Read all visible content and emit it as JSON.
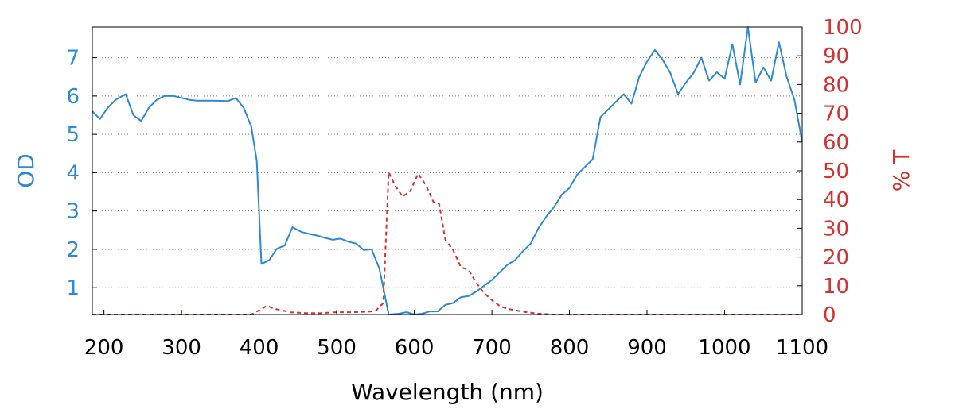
{
  "chart_data": {
    "type": "line",
    "title": "",
    "xlabel": "Wavelength (nm)",
    "ylabel_left": "OD",
    "ylabel_right": "% T",
    "xlim": [
      185,
      1100
    ],
    "ylim_left": [
      0.3,
      7.8
    ],
    "ylim_right": [
      0,
      100
    ],
    "x_ticks": [
      200,
      300,
      400,
      500,
      600,
      700,
      800,
      900,
      1000,
      1100
    ],
    "y_ticks_left": [
      1,
      2,
      3,
      4,
      5,
      6,
      7
    ],
    "y_ticks_right": [
      0,
      10,
      20,
      30,
      40,
      50,
      60,
      70,
      80,
      90,
      100
    ],
    "grid": "horizontal dotted at left-axis ticks",
    "colors": {
      "od": "#2e8ad1",
      "transmission": "#d33333",
      "grid": "#808080",
      "axis": "#000000"
    },
    "series": [
      {
        "axis": "left",
        "style": "solid",
        "color": "#2e8ad1",
        "x": [
          185,
          195,
          205,
          215,
          228,
          238,
          248,
          258,
          268,
          278,
          290,
          300,
          310,
          320,
          340,
          360,
          370,
          380,
          390,
          397,
          403,
          413,
          423,
          433,
          443,
          455,
          465,
          475,
          485,
          495,
          505,
          515,
          525,
          535,
          545,
          555,
          567,
          580,
          590,
          600,
          610,
          620,
          630,
          640,
          650,
          660,
          670,
          680,
          690,
          700,
          710,
          720,
          730,
          740,
          750,
          760,
          770,
          780,
          790,
          800,
          810,
          820,
          830,
          840,
          850,
          860,
          870,
          880,
          890,
          900,
          910,
          920,
          930,
          940,
          950,
          960,
          970,
          980,
          990,
          1000,
          1010,
          1020,
          1030,
          1040,
          1050,
          1060,
          1070,
          1080,
          1090,
          1100
        ],
        "y": [
          5.6,
          5.4,
          5.7,
          5.9,
          6.05,
          5.5,
          5.35,
          5.7,
          5.9,
          6.0,
          6.0,
          5.95,
          5.9,
          5.88,
          5.88,
          5.87,
          5.95,
          5.7,
          5.2,
          4.3,
          1.62,
          1.72,
          2.02,
          2.1,
          2.58,
          2.45,
          2.4,
          2.36,
          2.3,
          2.25,
          2.28,
          2.2,
          2.15,
          1.98,
          2.0,
          1.5,
          0.3,
          0.32,
          0.36,
          0.3,
          0.32,
          0.38,
          0.38,
          0.55,
          0.6,
          0.75,
          0.78,
          0.9,
          1.05,
          1.2,
          1.4,
          1.6,
          1.72,
          1.95,
          2.15,
          2.55,
          2.85,
          3.1,
          3.42,
          3.6,
          3.95,
          4.15,
          4.35,
          5.45,
          5.65,
          5.85,
          6.05,
          5.8,
          6.5,
          6.9,
          7.2,
          6.95,
          6.6,
          6.05,
          6.35,
          6.6,
          7.0,
          6.4,
          6.62,
          6.45,
          7.35,
          6.3,
          7.8,
          6.35,
          6.75,
          6.4,
          7.4,
          6.5,
          5.9,
          4.8
        ]
      },
      {
        "axis": "right",
        "style": "dashed",
        "color": "#d33333",
        "x": [
          185,
          200,
          300,
          390,
          400,
          410,
          420,
          440,
          460,
          480,
          500,
          520,
          540,
          550,
          560,
          567,
          575,
          585,
          595,
          605,
          615,
          625,
          632,
          640,
          650,
          660,
          670,
          680,
          690,
          700,
          710,
          720,
          740,
          760,
          780,
          800,
          900,
          1000,
          1100
        ],
        "y": [
          0,
          0,
          0,
          0,
          1.5,
          3,
          2,
          0.8,
          0.5,
          0.5,
          0.8,
          0.8,
          1,
          1.2,
          4,
          49.5,
          45,
          41,
          43,
          49,
          45,
          39,
          38.5,
          26,
          22.5,
          16.5,
          15.5,
          11,
          7.5,
          5,
          3,
          2,
          1,
          0.3,
          0,
          0,
          0,
          0,
          0
        ]
      }
    ]
  }
}
